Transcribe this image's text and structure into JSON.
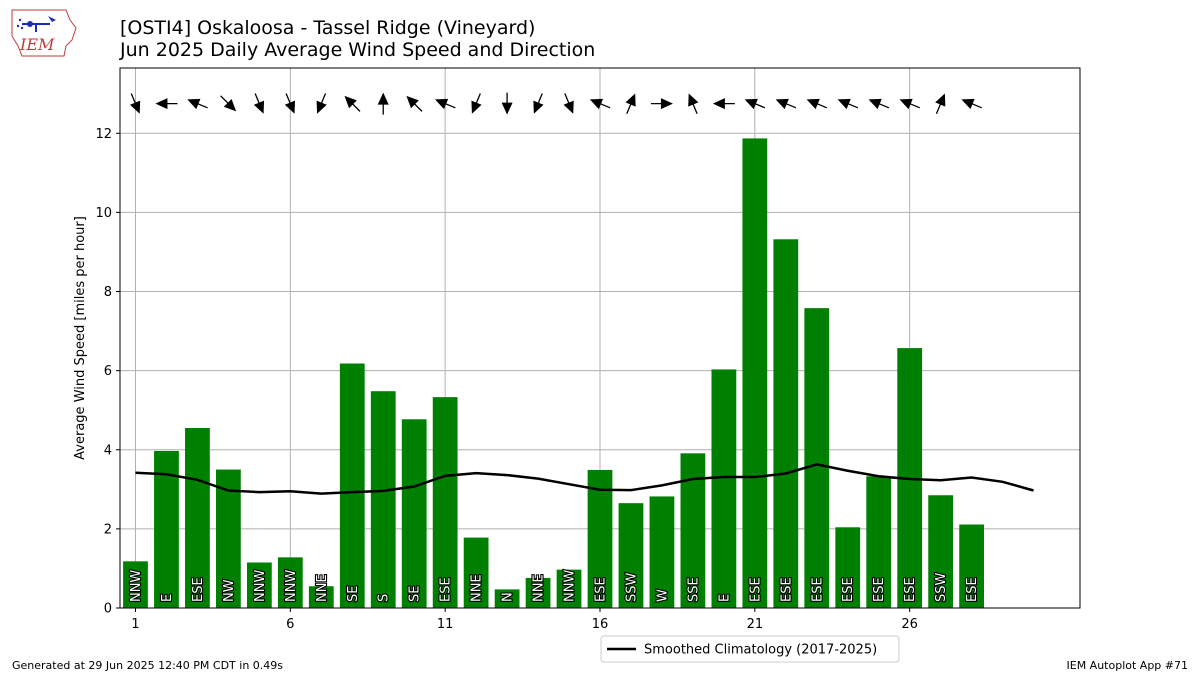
{
  "header": {
    "title_line1": "[OSTI4] Oskaloosa - Tassel Ridge (Vineyard)",
    "title_line2": "Jun 2025 Daily Average Wind Speed and Direction"
  },
  "logo": {
    "text": "IEM"
  },
  "footer": {
    "left": "Generated at 29 Jun 2025 12:40 PM CDT in 0.49s",
    "right": "IEM Autoplot App #71"
  },
  "colors": {
    "bar": "#008000",
    "climo": "#000000",
    "grid": "#b0b0b0"
  },
  "chart_data": {
    "type": "bar",
    "ylabel": "Average Wind Speed [miles per hour]",
    "xlabel": "",
    "xlim": [
      0.5,
      31.5
    ],
    "ylim": [
      0,
      13.65
    ],
    "xticks": [
      1,
      6,
      11,
      16,
      21,
      26
    ],
    "yticks": [
      0,
      2,
      4,
      6,
      8,
      10,
      12
    ],
    "grid": true,
    "days": [
      1,
      2,
      3,
      4,
      5,
      6,
      7,
      8,
      9,
      10,
      11,
      12,
      13,
      14,
      15,
      16,
      17,
      18,
      19,
      20,
      21,
      22,
      23,
      24,
      25,
      26,
      27,
      28
    ],
    "values": [
      1.18,
      3.97,
      4.55,
      3.5,
      1.15,
      1.28,
      0.55,
      6.18,
      5.48,
      4.77,
      5.33,
      1.78,
      0.47,
      0.76,
      0.97,
      3.49,
      2.65,
      2.82,
      3.91,
      6.03,
      11.87,
      9.32,
      7.58,
      2.04,
      3.33,
      6.57,
      2.85,
      2.11
    ],
    "directions": [
      "NNW",
      "E",
      "ESE",
      "NW",
      "NNW",
      "NNW",
      "NNE",
      "SE",
      "S",
      "SE",
      "ESE",
      "NNE",
      "N",
      "NNE",
      "NNW",
      "ESE",
      "SSW",
      "W",
      "SSE",
      "E",
      "ESE",
      "ESE",
      "ESE",
      "ESE",
      "ESE",
      "ESE",
      "SSW",
      "ESE"
    ],
    "climatology": {
      "name": "Smoothed Climatology (2017-2025)",
      "x": [
        1,
        2,
        3,
        4,
        5,
        6,
        7,
        8,
        9,
        10,
        11,
        12,
        13,
        14,
        15,
        16,
        17,
        18,
        19,
        20,
        21,
        22,
        23,
        24,
        25,
        26,
        27,
        28,
        29,
        30
      ],
      "values": [
        3.42,
        3.38,
        3.24,
        2.97,
        2.93,
        2.95,
        2.89,
        2.93,
        2.96,
        3.07,
        3.34,
        3.41,
        3.36,
        3.27,
        3.13,
        2.99,
        2.98,
        3.1,
        3.26,
        3.31,
        3.31,
        3.4,
        3.63,
        3.47,
        3.33,
        3.26,
        3.23,
        3.3,
        3.19,
        2.97
      ]
    },
    "legend": {
      "placement": "bottom-center"
    }
  }
}
